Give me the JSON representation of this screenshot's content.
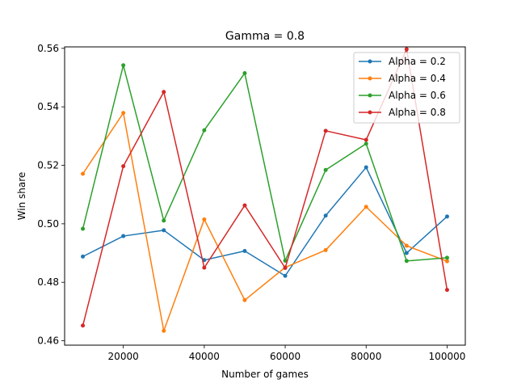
{
  "chart_data": {
    "type": "line",
    "title": "Gamma = 0.8",
    "xlabel": "Number of games",
    "ylabel": "Win share",
    "x": [
      10000,
      20000,
      30000,
      40000,
      50000,
      60000,
      70000,
      80000,
      90000,
      100000
    ],
    "xlim": [
      5500,
      104500
    ],
    "ylim": [
      0.4585,
      0.5605
    ],
    "xticks": [
      20000,
      40000,
      60000,
      80000,
      100000
    ],
    "xtick_labels": [
      "20000",
      "40000",
      "60000",
      "80000",
      "100000"
    ],
    "yticks": [
      0.46,
      0.48,
      0.5,
      0.52,
      0.54,
      0.56
    ],
    "ytick_labels": [
      "0.46",
      "0.48",
      "0.50",
      "0.52",
      "0.54",
      "0.56"
    ],
    "grid": false,
    "legend_position": "top-right",
    "series": [
      {
        "name": "Alpha = 0.2",
        "color": "#1f77b4",
        "values": [
          0.4888,
          0.4958,
          0.4978,
          0.4876,
          0.4907,
          0.4822,
          0.5028,
          0.5193,
          0.49,
          0.5025
        ]
      },
      {
        "name": "Alpha = 0.4",
        "color": "#ff7f0e",
        "values": [
          0.5171,
          0.5379,
          0.4634,
          0.5015,
          0.4739,
          0.4851,
          0.491,
          0.5058,
          0.4925,
          0.4872
        ]
      },
      {
        "name": "Alpha = 0.6",
        "color": "#2ca02c",
        "values": [
          0.4983,
          0.5542,
          0.5011,
          0.532,
          0.5515,
          0.4874,
          0.5184,
          0.5274,
          0.4873,
          0.4884
        ]
      },
      {
        "name": "Alpha = 0.8",
        "color": "#d62728",
        "values": [
          0.4652,
          0.5197,
          0.5451,
          0.485,
          0.5063,
          0.4849,
          0.5318,
          0.5287,
          0.5597,
          0.4774
        ]
      }
    ]
  }
}
